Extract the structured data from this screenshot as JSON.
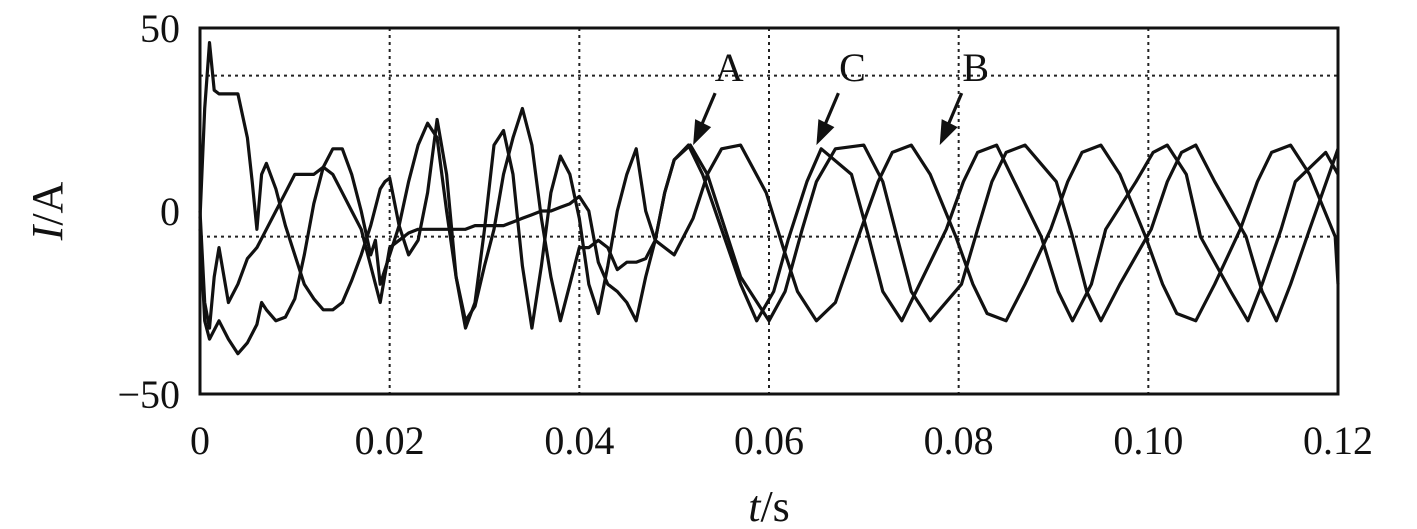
{
  "chart_data": {
    "type": "line",
    "xlabel_italic": "t",
    "xlabel_unit": "/s",
    "ylabel_italic": "I",
    "ylabel_unit": "/A",
    "xlim": [
      0,
      0.12
    ],
    "ylim": [
      -50,
      50
    ],
    "x_ticks": [
      0,
      0.02,
      0.04,
      0.06,
      0.08,
      0.1,
      0.12
    ],
    "x_tick_labels": [
      "0",
      "0.02",
      "0.04",
      "0.06",
      "0.08",
      "0.10",
      "0.12"
    ],
    "y_ticks": [
      50,
      0,
      -50
    ],
    "y_tick_labels": [
      "50",
      "0",
      "−50"
    ],
    "grid": true,
    "grid_y_values": [
      37,
      -7
    ],
    "series": [
      {
        "name": "A",
        "x": [
          0,
          0.0005,
          0.001,
          0.0015,
          0.002,
          0.003,
          0.004,
          0.005,
          0.0055,
          0.006,
          0.0065,
          0.007,
          0.008,
          0.009,
          0.01,
          0.011,
          0.012,
          0.013,
          0.014,
          0.015,
          0.016,
          0.017,
          0.018,
          0.019,
          0.0195,
          0.02,
          0.021,
          0.022,
          0.023,
          0.024,
          0.025,
          0.026,
          0.027,
          0.028,
          0.029,
          0.03,
          0.031,
          0.032,
          0.033,
          0.034,
          0.035,
          0.036,
          0.037,
          0.038,
          0.039,
          0.04,
          0.041,
          0.042,
          0.043,
          0.044,
          0.045,
          0.046,
          0.047,
          0.048,
          0.049,
          0.05,
          0.0517,
          0.0535,
          0.055,
          0.057,
          0.06,
          0.0617,
          0.0635,
          0.065,
          0.067,
          0.07,
          0.072,
          0.0735,
          0.075,
          0.077,
          0.0803,
          0.082,
          0.0835,
          0.085,
          0.087,
          0.0903,
          0.092,
          0.0935,
          0.095,
          0.097,
          0.1003,
          0.102,
          0.1035,
          0.105,
          0.107,
          0.1103,
          0.112,
          0.1135,
          0.115,
          0.117,
          0.12
        ],
        "values": [
          -2,
          28,
          46,
          33,
          32,
          32,
          32,
          20,
          8,
          -5,
          10,
          13,
          6,
          -4,
          -12,
          -20,
          -24,
          -27,
          -27,
          -25,
          -19,
          -12,
          -4,
          6,
          8,
          9,
          -4,
          -12,
          -8,
          5,
          25,
          10,
          -18,
          -32,
          -25,
          -5,
          18,
          22,
          10,
          -15,
          -32,
          -15,
          5,
          15,
          10,
          -2,
          -20,
          -28,
          -15,
          0,
          10,
          17,
          0,
          -8,
          5,
          14,
          18,
          10,
          -2,
          -18,
          -30,
          -22,
          -5,
          8,
          17,
          18,
          8,
          -7,
          -22,
          -30,
          -20,
          -5,
          8,
          16,
          18,
          8,
          -7,
          -22,
          -30,
          -20,
          -5,
          8,
          16,
          18,
          8,
          -7,
          -22,
          -30,
          -20,
          -5,
          17
        ]
      },
      {
        "name": "B",
        "x": [
          0,
          0.0005,
          0.001,
          0.002,
          0.003,
          0.004,
          0.005,
          0.006,
          0.0065,
          0.007,
          0.008,
          0.009,
          0.01,
          0.011,
          0.012,
          0.013,
          0.014,
          0.015,
          0.016,
          0.017,
          0.018,
          0.0185,
          0.019,
          0.02,
          0.021,
          0.022,
          0.023,
          0.024,
          0.025,
          0.026,
          0.027,
          0.028,
          0.029,
          0.03,
          0.031,
          0.032,
          0.033,
          0.034,
          0.035,
          0.036,
          0.037,
          0.038,
          0.039,
          0.04,
          0.041,
          0.042,
          0.043,
          0.044,
          0.045,
          0.046,
          0.047,
          0.048,
          0.049,
          0.05,
          0.052,
          0.0535,
          0.055,
          0.057,
          0.0597,
          0.0615,
          0.063,
          0.065,
          0.067,
          0.0697,
          0.0715,
          0.073,
          0.075,
          0.077,
          0.0797,
          0.0815,
          0.083,
          0.085,
          0.087,
          0.0897,
          0.0915,
          0.093,
          0.095,
          0.097,
          0.0997,
          0.1015,
          0.103,
          0.105,
          0.107,
          0.1097,
          0.1115,
          0.113,
          0.115,
          0.117,
          0.1197,
          0.12
        ],
        "values": [
          -5,
          -30,
          -35,
          -30,
          -35,
          -39,
          -36,
          -31,
          -25,
          -27,
          -30,
          -29,
          -24,
          -12,
          2,
          12,
          17,
          17,
          10,
          0,
          -12,
          -8,
          -20,
          -12,
          -4,
          8,
          18,
          24,
          20,
          0,
          -18,
          -30,
          -26,
          -15,
          -5,
          10,
          20,
          28,
          18,
          -2,
          -18,
          -30,
          -20,
          -10,
          -10,
          -8,
          -10,
          -16,
          -14,
          -14,
          -13,
          -8,
          -10,
          -12,
          -2,
          10,
          17,
          18,
          5,
          -10,
          -22,
          -30,
          -25,
          -5,
          8,
          16,
          18,
          10,
          -7,
          -20,
          -28,
          -30,
          -20,
          -5,
          8,
          16,
          18,
          10,
          -7,
          -20,
          -28,
          -30,
          -20,
          -5,
          8,
          16,
          18,
          10,
          -7,
          -20
        ]
      },
      {
        "name": "C",
        "x": [
          0,
          0.0005,
          0.001,
          0.0015,
          0.002,
          0.003,
          0.004,
          0.005,
          0.006,
          0.007,
          0.008,
          0.009,
          0.01,
          0.011,
          0.012,
          0.013,
          0.014,
          0.015,
          0.016,
          0.017,
          0.018,
          0.019,
          0.02,
          0.021,
          0.022,
          0.023,
          0.024,
          0.025,
          0.026,
          0.027,
          0.028,
          0.029,
          0.03,
          0.031,
          0.032,
          0.033,
          0.034,
          0.035,
          0.036,
          0.037,
          0.038,
          0.039,
          0.04,
          0.041,
          0.042,
          0.043,
          0.044,
          0.045,
          0.046,
          0.047,
          0.048,
          0.049,
          0.05,
          0.0515,
          0.053,
          0.055,
          0.057,
          0.0587,
          0.0605,
          0.062,
          0.064,
          0.0655,
          0.0687,
          0.0705,
          0.072,
          0.074,
          0.0755,
          0.0787,
          0.0805,
          0.082,
          0.084,
          0.0855,
          0.0887,
          0.0905,
          0.092,
          0.094,
          0.0955,
          0.0987,
          0.1005,
          0.102,
          0.104,
          0.1055,
          0.1087,
          0.1105,
          0.112,
          0.114,
          0.1155,
          0.1187,
          0.12
        ],
        "values": [
          0,
          -25,
          -32,
          -18,
          -10,
          -25,
          -20,
          -13,
          -10,
          -5,
          0,
          5,
          10,
          10,
          10,
          12,
          10,
          5,
          0,
          -5,
          -15,
          -25,
          -10,
          -8,
          -6,
          -5,
          -5,
          -5,
          -5,
          -5,
          -5,
          -4,
          -4,
          -4,
          -4,
          -3,
          -2,
          -1,
          0,
          0,
          1,
          2,
          4,
          0,
          -14,
          -20,
          -22,
          -25,
          -30,
          -18,
          -8,
          5,
          14,
          18,
          10,
          -5,
          -20,
          -30,
          -22,
          -8,
          8,
          17,
          10,
          -7,
          -22,
          -30,
          -22,
          -5,
          8,
          16,
          18,
          10,
          -7,
          -22,
          -30,
          -20,
          -5,
          8,
          16,
          18,
          10,
          -7,
          -22,
          -30,
          -20,
          -5,
          8,
          16,
          10
        ]
      }
    ],
    "annotations": [
      {
        "label": "A",
        "series": "A",
        "x": 0.052,
        "y": 18
      },
      {
        "label": "C",
        "series": "C",
        "x": 0.065,
        "y": 18
      },
      {
        "label": "B",
        "series": "B",
        "x": 0.078,
        "y": 18
      }
    ]
  }
}
